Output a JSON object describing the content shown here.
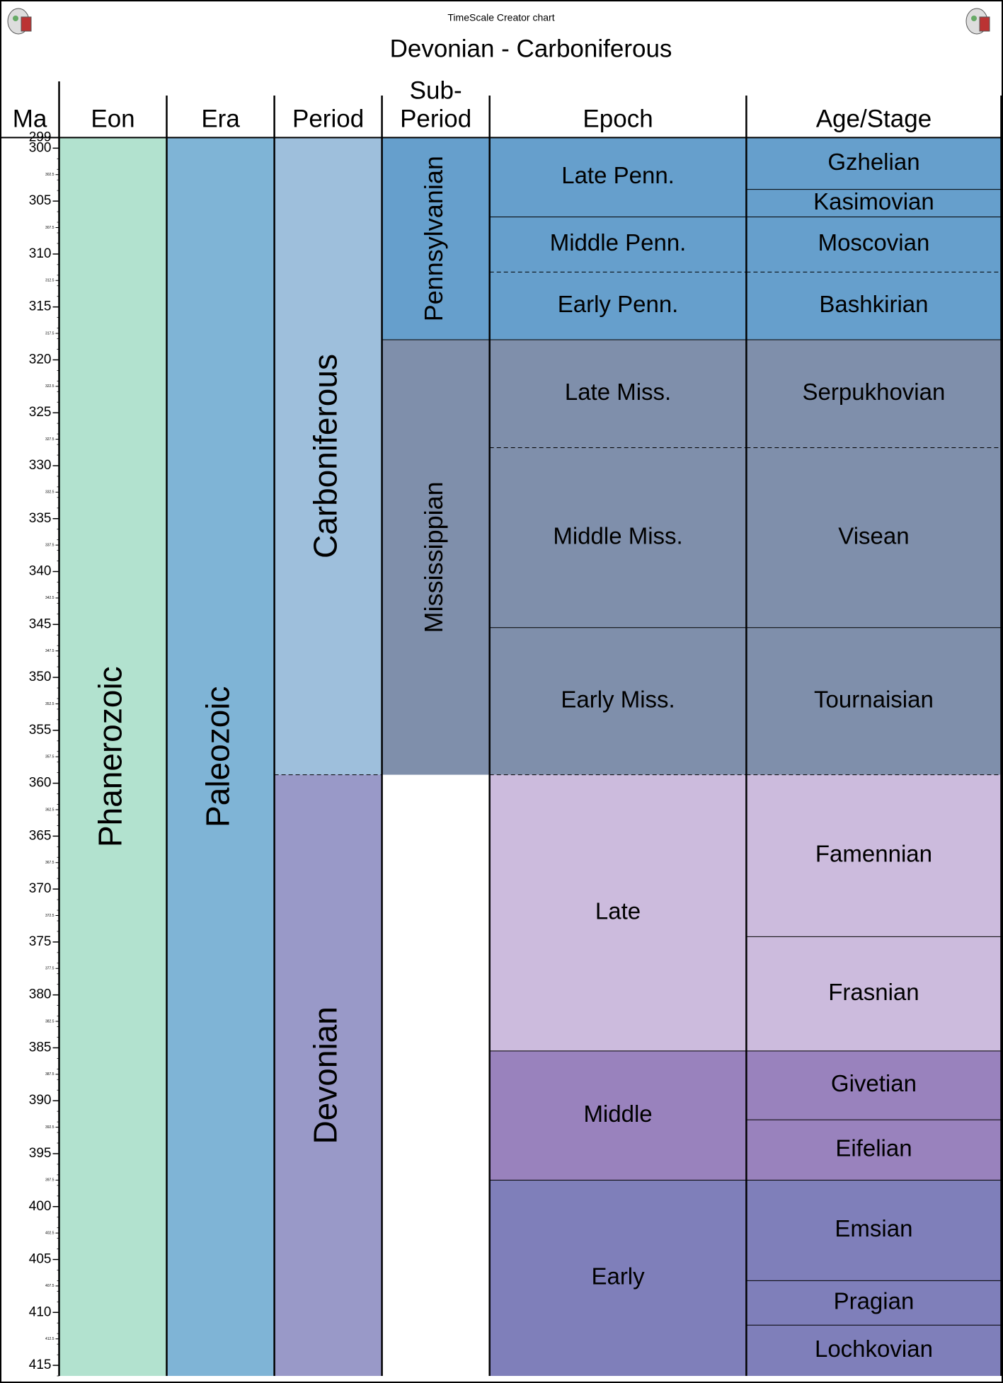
{
  "chart_data": {
    "type": "timescale",
    "subtitle": "TimeScale Creator chart",
    "title": "Devonian - Carboniferous",
    "axis_label": "Ma",
    "ylim": [
      299,
      416
    ],
    "yticks": [
      299,
      300,
      305,
      310,
      315,
      320,
      325,
      330,
      335,
      340,
      345,
      350,
      355,
      360,
      365,
      370,
      375,
      380,
      385,
      390,
      395,
      400,
      405,
      410,
      415
    ],
    "minor_yticks": [
      302.5,
      307.5,
      312.5,
      317.5,
      322.5,
      327.5,
      332.5,
      337.5,
      342.5,
      347.5,
      352.5,
      357.5,
      362.5,
      367.5,
      372.5,
      377.5,
      382.5,
      387.5,
      392.5,
      397.5,
      402.5,
      407.5,
      412.5
    ],
    "columns": [
      {
        "header": [
          "Eon"
        ],
        "rotate": true,
        "intervals": [
          {
            "name": "Phanerozoic",
            "top": 299,
            "base": 416,
            "color": "#b2e2cf"
          }
        ]
      },
      {
        "header": [
          "Era"
        ],
        "rotate": true,
        "intervals": [
          {
            "name": "Paleozoic",
            "top": 299,
            "base": 416,
            "color": "#7fb4d6"
          }
        ]
      },
      {
        "header": [
          "Period"
        ],
        "rotate": true,
        "intervals": [
          {
            "name": "Carboniferous",
            "top": 299,
            "base": 359.2,
            "color": "#9ebfdc"
          },
          {
            "name": "Devonian",
            "top": 359.2,
            "base": 416,
            "color": "#9999c8",
            "dashed_top": true
          }
        ]
      },
      {
        "header": [
          "Sub-",
          "Period"
        ],
        "rotate": true,
        "intervals": [
          {
            "name": "Pennsylvanian",
            "top": 299,
            "base": 318.1,
            "color": "#669fcc"
          },
          {
            "name": "Mississippian",
            "top": 318.1,
            "base": 359.2,
            "color": "#7f8fab"
          }
        ]
      },
      {
        "header": [
          "Epoch"
        ],
        "rotate": false,
        "intervals": [
          {
            "name": "Late Penn.",
            "top": 299,
            "base": 306.5,
            "color": "#669fcc"
          },
          {
            "name": "Middle Penn.",
            "top": 306.5,
            "base": 311.7,
            "color": "#669fcc"
          },
          {
            "name": "Early Penn.",
            "top": 311.7,
            "base": 318.1,
            "color": "#669fcc",
            "dashed_top": true
          },
          {
            "name": "Late Miss.",
            "top": 318.1,
            "base": 328.3,
            "color": "#7f8fab"
          },
          {
            "name": "Middle Miss.",
            "top": 328.3,
            "base": 345.3,
            "color": "#7f8fab",
            "dashed_top": true
          },
          {
            "name": "Early Miss.",
            "top": 345.3,
            "base": 359.2,
            "color": "#7f8fab"
          },
          {
            "name": "Late",
            "top": 359.2,
            "base": 385.3,
            "color": "#ccbbdd",
            "dashed_top": true
          },
          {
            "name": "Middle",
            "top": 385.3,
            "base": 397.5,
            "color": "#9982bd"
          },
          {
            "name": "Early",
            "top": 397.5,
            "base": 416,
            "color": "#7f7fba"
          }
        ]
      },
      {
        "header": [
          "Age/Stage"
        ],
        "rotate": false,
        "intervals": [
          {
            "name": "Gzhelian",
            "top": 299,
            "base": 303.9,
            "color": "#669fcc"
          },
          {
            "name": "Kasimovian",
            "top": 303.9,
            "base": 306.5,
            "color": "#669fcc"
          },
          {
            "name": "Moscovian",
            "top": 306.5,
            "base": 311.7,
            "color": "#669fcc"
          },
          {
            "name": "Bashkirian",
            "top": 311.7,
            "base": 318.1,
            "color": "#669fcc",
            "dashed_top": true
          },
          {
            "name": "Serpukhovian",
            "top": 318.1,
            "base": 328.3,
            "color": "#7f8fab"
          },
          {
            "name": "Visean",
            "top": 328.3,
            "base": 345.3,
            "color": "#7f8fab",
            "dashed_top": true
          },
          {
            "name": "Tournaisian",
            "top": 345.3,
            "base": 359.2,
            "color": "#7f8fab"
          },
          {
            "name": "Famennian",
            "top": 359.2,
            "base": 374.5,
            "color": "#ccbbdd",
            "dashed_top": true
          },
          {
            "name": "Frasnian",
            "top": 374.5,
            "base": 385.3,
            "color": "#ccbbdd"
          },
          {
            "name": "Givetian",
            "top": 385.3,
            "base": 391.8,
            "color": "#9982bd"
          },
          {
            "name": "Eifelian",
            "top": 391.8,
            "base": 397.5,
            "color": "#9982bd"
          },
          {
            "name": "Emsian",
            "top": 397.5,
            "base": 407.0,
            "color": "#7f7fba"
          },
          {
            "name": "Pragian",
            "top": 407.0,
            "base": 411.2,
            "color": "#7f7fba"
          },
          {
            "name": "Lochkovian",
            "top": 411.2,
            "base": 416,
            "color": "#7f7fba"
          }
        ]
      }
    ]
  }
}
